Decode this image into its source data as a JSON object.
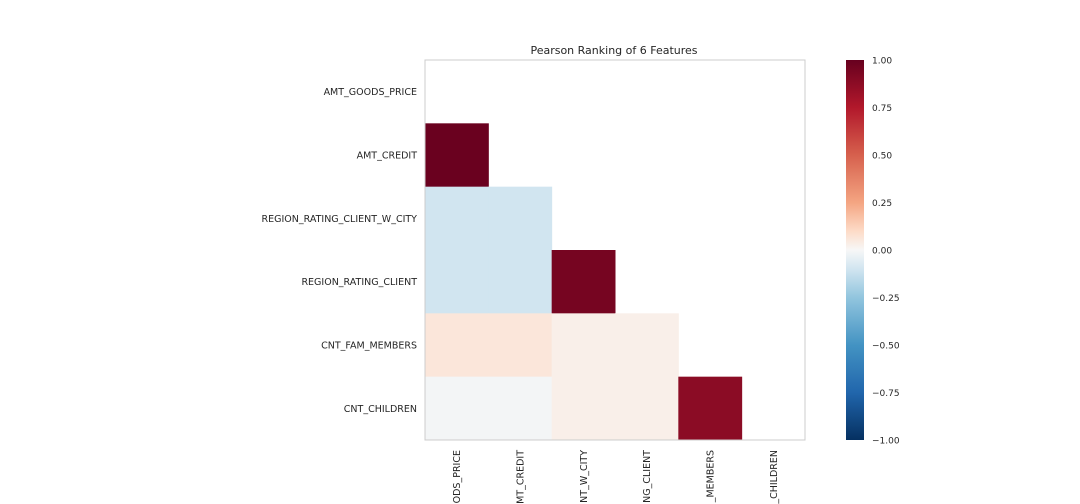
{
  "chart_data": {
    "type": "heatmap",
    "title": "Pearson Ranking of 6 Features",
    "features": [
      "AMT_GOODS_PRICE",
      "AMT_CREDIT",
      "REGION_RATING_CLIENT_W_CITY",
      "REGION_RATING_CLIENT",
      "CNT_FAM_MEMBERS",
      "CNT_CHILDREN"
    ],
    "x_tick_labels": [
      "ODS_PRICE",
      "MT_CREDIT",
      "NT_W_CITY",
      "NG_CLIENT",
      "_MEMBERS",
      "_CHILDREN"
    ],
    "matrix": [
      [
        null,
        null,
        null,
        null,
        null,
        null
      ],
      [
        0.99,
        null,
        null,
        null,
        null,
        null
      ],
      [
        -0.1,
        -0.1,
        null,
        null,
        null,
        null
      ],
      [
        -0.1,
        -0.1,
        0.95,
        null,
        null,
        null
      ],
      [
        0.06,
        0.06,
        0.03,
        0.03,
        null,
        null
      ],
      [
        -0.01,
        -0.01,
        0.03,
        0.03,
        0.88,
        null
      ]
    ],
    "colorbar": {
      "min": -1.0,
      "max": 1.0,
      "ticks": [
        "1.00",
        "0.75",
        "0.50",
        "0.25",
        "0.00",
        "−0.25",
        "−0.50",
        "−0.75",
        "−1.00"
      ],
      "colormap": "RdBu_r"
    }
  }
}
